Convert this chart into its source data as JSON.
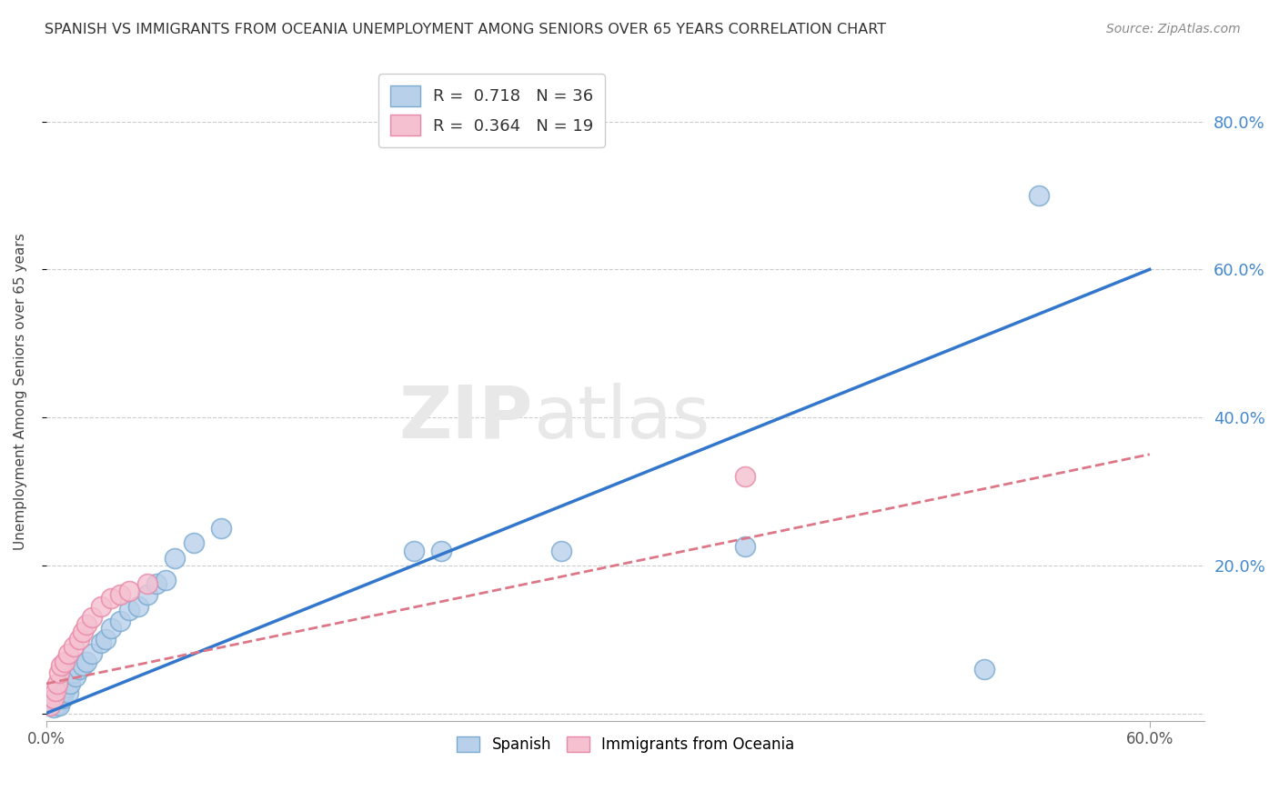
{
  "title": "SPANISH VS IMMIGRANTS FROM OCEANIA UNEMPLOYMENT AMONG SENIORS OVER 65 YEARS CORRELATION CHART",
  "source": "Source: ZipAtlas.com",
  "ylabel": "Unemployment Among Seniors over 65 years",
  "xlim": [
    0.0,
    0.63
  ],
  "ylim": [
    -0.01,
    0.88
  ],
  "xtick_positions": [
    0.0,
    0.6
  ],
  "xtick_labels": [
    "0.0%",
    "60.0%"
  ],
  "yticks": [
    0.0,
    0.2,
    0.4,
    0.6,
    0.8
  ],
  "ytick_labels": [
    "",
    "20.0%",
    "40.0%",
    "60.0%",
    "80.0%"
  ],
  "spanish_x": [
    0.002,
    0.003,
    0.004,
    0.005,
    0.006,
    0.007,
    0.008,
    0.009,
    0.01,
    0.011,
    0.012,
    0.013,
    0.015,
    0.016,
    0.018,
    0.02,
    0.022,
    0.025,
    0.03,
    0.032,
    0.035,
    0.04,
    0.045,
    0.05,
    0.055,
    0.06,
    0.065,
    0.07,
    0.08,
    0.095,
    0.2,
    0.215,
    0.28,
    0.38,
    0.51,
    0.54
  ],
  "spanish_y": [
    0.01,
    0.015,
    0.008,
    0.02,
    0.012,
    0.01,
    0.025,
    0.02,
    0.03,
    0.035,
    0.028,
    0.04,
    0.055,
    0.05,
    0.06,
    0.065,
    0.07,
    0.08,
    0.095,
    0.1,
    0.115,
    0.125,
    0.14,
    0.145,
    0.16,
    0.175,
    0.18,
    0.21,
    0.23,
    0.25,
    0.22,
    0.22,
    0.22,
    0.225,
    0.06,
    0.7
  ],
  "oceania_x": [
    0.002,
    0.004,
    0.005,
    0.006,
    0.007,
    0.008,
    0.01,
    0.012,
    0.015,
    0.018,
    0.02,
    0.022,
    0.025,
    0.03,
    0.035,
    0.04,
    0.045,
    0.055,
    0.38
  ],
  "oceania_y": [
    0.01,
    0.02,
    0.03,
    0.04,
    0.055,
    0.065,
    0.07,
    0.08,
    0.09,
    0.1,
    0.11,
    0.12,
    0.13,
    0.145,
    0.155,
    0.16,
    0.165,
    0.175,
    0.32
  ],
  "spanish_line_x0": 0.0,
  "spanish_line_y0": 0.0,
  "spanish_line_x1": 0.6,
  "spanish_line_y1": 0.6,
  "oceania_line_x0": 0.0,
  "oceania_line_y0": 0.04,
  "oceania_line_x1": 0.6,
  "oceania_line_y1": 0.35,
  "R_spanish": 0.718,
  "N_spanish": 36,
  "R_oceania": 0.364,
  "N_oceania": 19,
  "spanish_color": "#b8d0ea",
  "spanish_edge_color": "#7aaad0",
  "oceania_color": "#f5c0d0",
  "oceania_edge_color": "#e888a8",
  "spanish_line_color": "#3377cc",
  "oceania_line_color": "#dd7788",
  "grid_color": "#cccccc",
  "axis_label_color": "#4488cc",
  "title_color": "#333333",
  "watermark_color": "#e8e8e8"
}
